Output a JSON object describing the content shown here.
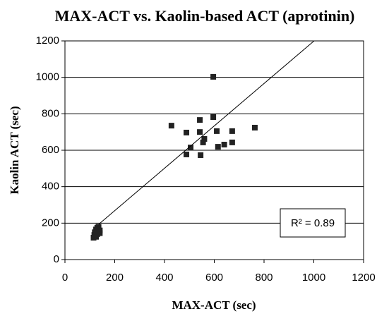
{
  "chart_data": {
    "type": "scatter",
    "title": "MAX-ACT vs. Kaolin-based ACT (aprotinin)",
    "xlabel": "MAX-ACT (sec)",
    "ylabel": "Kaolin ACT (sec)",
    "annotation": "R² = 0.89",
    "color": "#222222",
    "x": [
      428,
      488,
      488,
      505,
      542,
      542,
      545,
      555,
      560,
      596,
      596,
      610,
      615,
      640,
      672,
      672,
      763,
      115,
      118,
      120,
      125,
      130,
      135,
      140,
      140,
      130,
      125
    ],
    "y": [
      735,
      697,
      577,
      615,
      766,
      700,
      573,
      643,
      662,
      1003,
      782,
      705,
      619,
      631,
      705,
      643,
      724,
      120,
      135,
      150,
      165,
      175,
      180,
      160,
      145,
      140,
      125
    ],
    "trendline": {
      "x": [
        136,
        1001
      ],
      "y": [
        194,
        1200
      ]
    },
    "xlim": [
      0,
      1200
    ],
    "xticks": [
      0,
      200,
      400,
      600,
      800,
      1000,
      1200
    ],
    "ylim": [
      0,
      1200
    ],
    "yticks": [
      0,
      200,
      400,
      600,
      800,
      1000,
      1200
    ],
    "grid": true
  }
}
